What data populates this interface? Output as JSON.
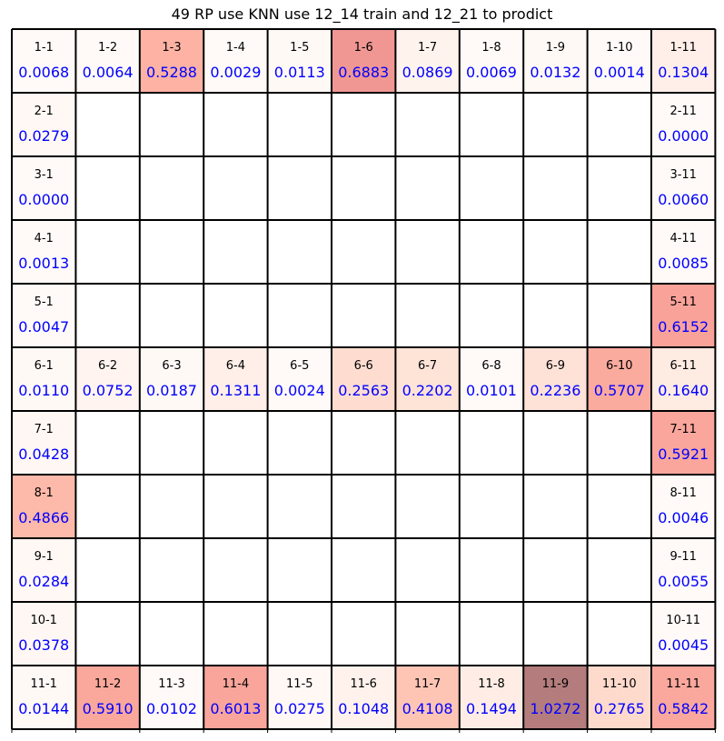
{
  "chart_data": {
    "type": "heatmap",
    "title": "49 RP use KNN use 12_14 train and 12_21 to prodict",
    "rows": 11,
    "cols": 11,
    "colormap": "Reds",
    "vmin": 0,
    "vmax": 1.0272,
    "highlight_color": "#b47c7c",
    "value_text_color": "#0000ff",
    "cells": [
      {
        "row": 1,
        "col": 1,
        "label": "1-1",
        "value": "0.0068"
      },
      {
        "row": 1,
        "col": 2,
        "label": "1-2",
        "value": "0.0064"
      },
      {
        "row": 1,
        "col": 3,
        "label": "1-3",
        "value": "0.5288"
      },
      {
        "row": 1,
        "col": 4,
        "label": "1-4",
        "value": "0.0029"
      },
      {
        "row": 1,
        "col": 5,
        "label": "1-5",
        "value": "0.0113"
      },
      {
        "row": 1,
        "col": 6,
        "label": "1-6",
        "value": "0.6883"
      },
      {
        "row": 1,
        "col": 7,
        "label": "1-7",
        "value": "0.0869"
      },
      {
        "row": 1,
        "col": 8,
        "label": "1-8",
        "value": "0.0069"
      },
      {
        "row": 1,
        "col": 9,
        "label": "1-9",
        "value": "0.0132"
      },
      {
        "row": 1,
        "col": 10,
        "label": "1-10",
        "value": "0.0014"
      },
      {
        "row": 1,
        "col": 11,
        "label": "1-11",
        "value": "0.1304"
      },
      {
        "row": 2,
        "col": 1,
        "label": "2-1",
        "value": "0.0279"
      },
      {
        "row": 2,
        "col": 11,
        "label": "2-11",
        "value": "0.0000"
      },
      {
        "row": 3,
        "col": 1,
        "label": "3-1",
        "value": "0.0000"
      },
      {
        "row": 3,
        "col": 11,
        "label": "3-11",
        "value": "0.0060"
      },
      {
        "row": 4,
        "col": 1,
        "label": "4-1",
        "value": "0.0013"
      },
      {
        "row": 4,
        "col": 11,
        "label": "4-11",
        "value": "0.0085"
      },
      {
        "row": 5,
        "col": 1,
        "label": "5-1",
        "value": "0.0047"
      },
      {
        "row": 5,
        "col": 11,
        "label": "5-11",
        "value": "0.6152"
      },
      {
        "row": 6,
        "col": 1,
        "label": "6-1",
        "value": "0.0110"
      },
      {
        "row": 6,
        "col": 2,
        "label": "6-2",
        "value": "0.0752"
      },
      {
        "row": 6,
        "col": 3,
        "label": "6-3",
        "value": "0.0187"
      },
      {
        "row": 6,
        "col": 4,
        "label": "6-4",
        "value": "0.1311"
      },
      {
        "row": 6,
        "col": 5,
        "label": "6-5",
        "value": "0.0024"
      },
      {
        "row": 6,
        "col": 6,
        "label": "6-6",
        "value": "0.2563"
      },
      {
        "row": 6,
        "col": 7,
        "label": "6-7",
        "value": "0.2202"
      },
      {
        "row": 6,
        "col": 8,
        "label": "6-8",
        "value": "0.0101"
      },
      {
        "row": 6,
        "col": 9,
        "label": "6-9",
        "value": "0.2236"
      },
      {
        "row": 6,
        "col": 10,
        "label": "6-10",
        "value": "0.5707"
      },
      {
        "row": 6,
        "col": 11,
        "label": "6-11",
        "value": "0.1640"
      },
      {
        "row": 7,
        "col": 1,
        "label": "7-1",
        "value": "0.0428"
      },
      {
        "row": 7,
        "col": 11,
        "label": "7-11",
        "value": "0.5921"
      },
      {
        "row": 8,
        "col": 1,
        "label": "8-1",
        "value": "0.4866"
      },
      {
        "row": 8,
        "col": 11,
        "label": "8-11",
        "value": "0.0046"
      },
      {
        "row": 9,
        "col": 1,
        "label": "9-1",
        "value": "0.0284"
      },
      {
        "row": 9,
        "col": 11,
        "label": "9-11",
        "value": "0.0055"
      },
      {
        "row": 10,
        "col": 1,
        "label": "10-1",
        "value": "0.0378"
      },
      {
        "row": 10,
        "col": 11,
        "label": "10-11",
        "value": "0.0045"
      },
      {
        "row": 11,
        "col": 1,
        "label": "11-1",
        "value": "0.0144"
      },
      {
        "row": 11,
        "col": 2,
        "label": "11-2",
        "value": "0.5910"
      },
      {
        "row": 11,
        "col": 3,
        "label": "11-3",
        "value": "0.0102"
      },
      {
        "row": 11,
        "col": 4,
        "label": "11-4",
        "value": "0.6013"
      },
      {
        "row": 11,
        "col": 5,
        "label": "11-5",
        "value": "0.0275"
      },
      {
        "row": 11,
        "col": 6,
        "label": "11-6",
        "value": "0.1048"
      },
      {
        "row": 11,
        "col": 7,
        "label": "11-7",
        "value": "0.4108"
      },
      {
        "row": 11,
        "col": 8,
        "label": "11-8",
        "value": "0.1494"
      },
      {
        "row": 11,
        "col": 9,
        "label": "11-9",
        "value": "1.0272"
      },
      {
        "row": 11,
        "col": 10,
        "label": "11-10",
        "value": "0.2765"
      },
      {
        "row": 11,
        "col": 11,
        "label": "11-11",
        "value": "0.5842"
      }
    ]
  }
}
